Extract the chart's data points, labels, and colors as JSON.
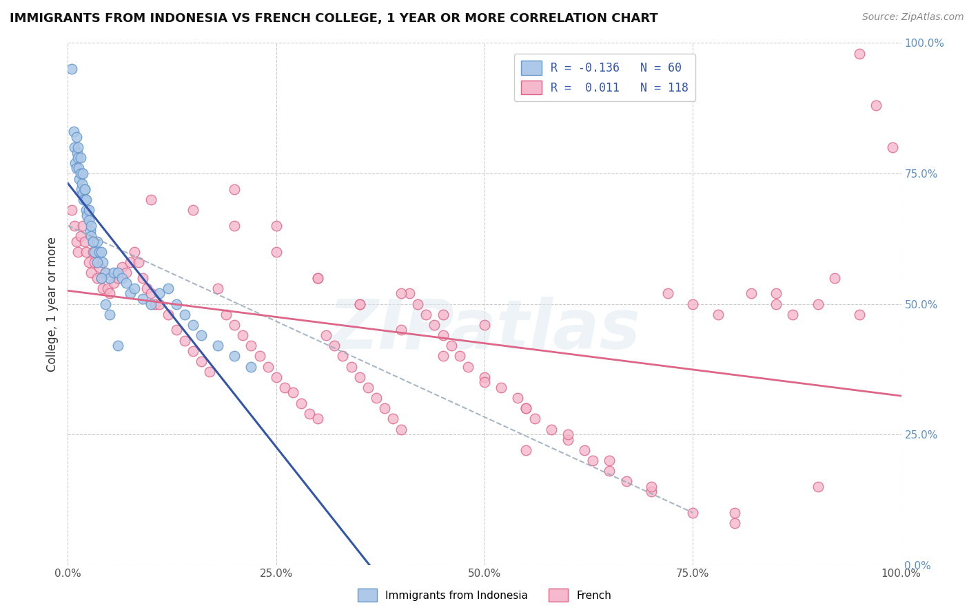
{
  "title": "IMMIGRANTS FROM INDONESIA VS FRENCH COLLEGE, 1 YEAR OR MORE CORRELATION CHART",
  "source": "Source: ZipAtlas.com",
  "ylabel": "College, 1 year or more",
  "legend_label1": "Immigrants from Indonesia",
  "legend_label2": "French",
  "R1": -0.136,
  "N1": 60,
  "R2": 0.011,
  "N2": 118,
  "color1": "#adc8e8",
  "color1_edge": "#6699cc",
  "color2": "#f5b8cc",
  "color2_edge": "#dd6688",
  "watermark": "ZIPatlas",
  "xlim": [
    0.0,
    1.0
  ],
  "ylim": [
    0.0,
    1.0
  ],
  "xticks": [
    0.0,
    0.25,
    0.5,
    0.75,
    1.0
  ],
  "yticks": [
    0.0,
    0.25,
    0.5,
    0.75,
    1.0
  ],
  "xtick_labels": [
    "0.0%",
    "25.0%",
    "50.0%",
    "75.0%",
    "100.0%"
  ],
  "ytick_labels": [
    "0.0%",
    "25.0%",
    "50.0%",
    "75.0%",
    "100.0%"
  ],
  "blue_dots_x": [
    0.005,
    0.007,
    0.008,
    0.009,
    0.01,
    0.011,
    0.012,
    0.013,
    0.014,
    0.015,
    0.016,
    0.017,
    0.018,
    0.019,
    0.02,
    0.021,
    0.022,
    0.023,
    0.025,
    0.027,
    0.028,
    0.03,
    0.032,
    0.035,
    0.038,
    0.04,
    0.042,
    0.045,
    0.05,
    0.055,
    0.06,
    0.065,
    0.07,
    0.075,
    0.08,
    0.09,
    0.1,
    0.11,
    0.12,
    0.13,
    0.14,
    0.15,
    0.16,
    0.18,
    0.2,
    0.22,
    0.01,
    0.012,
    0.015,
    0.018,
    0.02,
    0.022,
    0.025,
    0.028,
    0.03,
    0.035,
    0.04,
    0.045,
    0.05,
    0.06
  ],
  "blue_dots_y": [
    0.95,
    0.83,
    0.8,
    0.77,
    0.76,
    0.79,
    0.78,
    0.76,
    0.74,
    0.75,
    0.72,
    0.73,
    0.71,
    0.7,
    0.72,
    0.7,
    0.68,
    0.67,
    0.66,
    0.64,
    0.63,
    0.62,
    0.6,
    0.62,
    0.6,
    0.6,
    0.58,
    0.56,
    0.55,
    0.56,
    0.56,
    0.55,
    0.54,
    0.52,
    0.53,
    0.51,
    0.5,
    0.52,
    0.53,
    0.5,
    0.48,
    0.46,
    0.44,
    0.42,
    0.4,
    0.38,
    0.82,
    0.8,
    0.78,
    0.75,
    0.72,
    0.7,
    0.68,
    0.65,
    0.62,
    0.58,
    0.55,
    0.5,
    0.48,
    0.42
  ],
  "pink_dots_x": [
    0.005,
    0.008,
    0.01,
    0.012,
    0.015,
    0.018,
    0.02,
    0.022,
    0.025,
    0.028,
    0.03,
    0.032,
    0.035,
    0.038,
    0.04,
    0.042,
    0.045,
    0.048,
    0.05,
    0.055,
    0.06,
    0.065,
    0.07,
    0.075,
    0.08,
    0.085,
    0.09,
    0.095,
    0.1,
    0.105,
    0.11,
    0.12,
    0.13,
    0.14,
    0.15,
    0.16,
    0.17,
    0.18,
    0.19,
    0.2,
    0.21,
    0.22,
    0.23,
    0.24,
    0.25,
    0.26,
    0.27,
    0.28,
    0.29,
    0.3,
    0.31,
    0.32,
    0.33,
    0.34,
    0.35,
    0.36,
    0.37,
    0.38,
    0.39,
    0.4,
    0.41,
    0.42,
    0.43,
    0.44,
    0.45,
    0.46,
    0.47,
    0.48,
    0.5,
    0.52,
    0.54,
    0.55,
    0.56,
    0.58,
    0.6,
    0.62,
    0.63,
    0.65,
    0.67,
    0.7,
    0.72,
    0.75,
    0.78,
    0.8,
    0.82,
    0.85,
    0.87,
    0.9,
    0.92,
    0.95,
    0.97,
    0.99,
    0.3,
    0.35,
    0.4,
    0.45,
    0.5,
    0.55,
    0.2,
    0.25,
    0.1,
    0.15,
    0.2,
    0.25,
    0.3,
    0.35,
    0.4,
    0.45,
    0.5,
    0.55,
    0.6,
    0.65,
    0.7,
    0.75,
    0.8,
    0.85,
    0.9,
    0.95
  ],
  "pink_dots_y": [
    0.68,
    0.65,
    0.62,
    0.6,
    0.63,
    0.65,
    0.62,
    0.6,
    0.58,
    0.56,
    0.6,
    0.58,
    0.55,
    0.57,
    0.55,
    0.53,
    0.56,
    0.53,
    0.52,
    0.54,
    0.55,
    0.57,
    0.56,
    0.58,
    0.6,
    0.58,
    0.55,
    0.53,
    0.52,
    0.5,
    0.5,
    0.48,
    0.45,
    0.43,
    0.41,
    0.39,
    0.37,
    0.53,
    0.48,
    0.46,
    0.44,
    0.42,
    0.4,
    0.38,
    0.36,
    0.34,
    0.33,
    0.31,
    0.29,
    0.28,
    0.44,
    0.42,
    0.4,
    0.38,
    0.36,
    0.34,
    0.32,
    0.3,
    0.28,
    0.26,
    0.52,
    0.5,
    0.48,
    0.46,
    0.44,
    0.42,
    0.4,
    0.38,
    0.36,
    0.34,
    0.32,
    0.3,
    0.28,
    0.26,
    0.24,
    0.22,
    0.2,
    0.18,
    0.16,
    0.14,
    0.52,
    0.5,
    0.48,
    0.1,
    0.52,
    0.5,
    0.48,
    0.15,
    0.55,
    0.98,
    0.88,
    0.8,
    0.55,
    0.5,
    0.52,
    0.48,
    0.46,
    0.22,
    0.72,
    0.65,
    0.7,
    0.68,
    0.65,
    0.6,
    0.55,
    0.5,
    0.45,
    0.4,
    0.35,
    0.3,
    0.25,
    0.2,
    0.15,
    0.1,
    0.08,
    0.52,
    0.5,
    0.48
  ]
}
